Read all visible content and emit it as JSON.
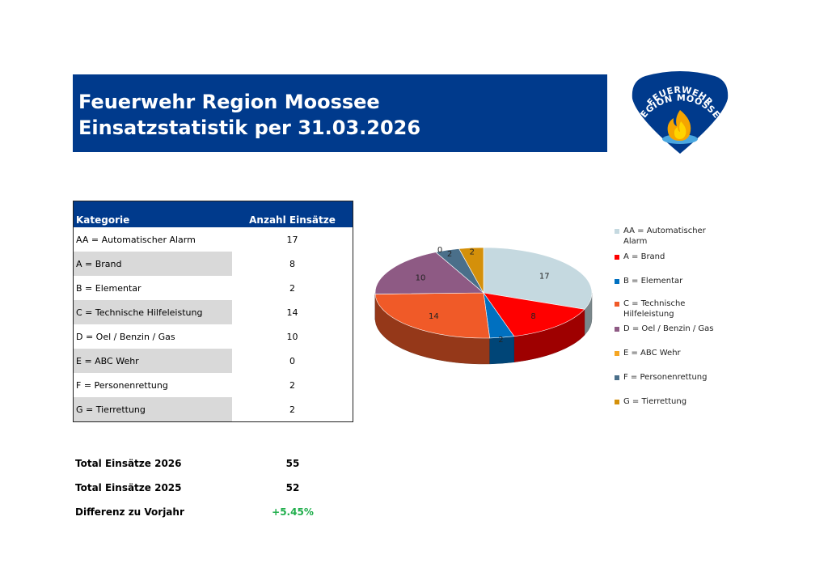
{
  "header": {
    "line1": "Feuerwehr Region Moossee",
    "line2": "Einsatzstatistik per 31.03.2026"
  },
  "logo": {
    "text_top": "FEUERWEHR",
    "text_bottom": "REGION MOOSSEE",
    "colors": {
      "shield": "#003a8c",
      "flame_outer": "#f5a500",
      "flame_inner": "#ffd400",
      "water": "#4aa7e0"
    }
  },
  "table": {
    "header_category": "Kategorie",
    "header_count": "Anzahl Einsätze",
    "rows": [
      {
        "label": "AA = Automatischer Alarm",
        "count": "17"
      },
      {
        "label": "A = Brand",
        "count": "8"
      },
      {
        "label": "B = Elementar",
        "count": "2"
      },
      {
        "label": "C = Technische Hilfeleistung",
        "count": "14"
      },
      {
        "label": "D = Oel / Benzin / Gas",
        "count": "10"
      },
      {
        "label": "E =  ABC Wehr",
        "count": "0"
      },
      {
        "label": "F = Personenrettung",
        "count": "2"
      },
      {
        "label": "G = Tierrettung",
        "count": "2"
      }
    ]
  },
  "totals": {
    "current_label": "Total Einsätze 2026",
    "current_value": "55",
    "previous_label": "Total Einsätze 2025",
    "previous_value": "52",
    "diff_label": "Differenz zu Vorjahr",
    "diff_value": "+5.45%",
    "diff_color": "#1fae4b"
  },
  "chart_data": {
    "type": "pie",
    "style": "3d",
    "categories": [
      "AA = Automatischer Alarm",
      "A = Brand",
      "B = Elementar",
      "C = Technische Hilfeleistung",
      "D = Oel / Benzin / Gas",
      "E =  ABC Wehr",
      "F = Personenrettung",
      "G = Tierrettung"
    ],
    "legend_lines": [
      [
        "AA = Automatischer",
        "Alarm"
      ],
      [
        "A = Brand"
      ],
      [
        "B = Elementar"
      ],
      [
        "C = Technische",
        "Hilfeleistung"
      ],
      [
        "D = Oel / Benzin / Gas"
      ],
      [
        "E =  ABC Wehr"
      ],
      [
        "F = Personenrettung"
      ],
      [
        "G = Tierrettung"
      ]
    ],
    "values": [
      17,
      8,
      2,
      14,
      10,
      0,
      2,
      2
    ],
    "data_labels": [
      "17",
      "8",
      "2",
      "14",
      "10",
      "0",
      "2",
      "2"
    ],
    "colors": [
      "#c5d9e0",
      "#ff0000",
      "#0070c0",
      "#f05a28",
      "#8e5a84",
      "#f5a623",
      "#4a6f8a",
      "#d4900a"
    ],
    "legend_position": "right"
  }
}
